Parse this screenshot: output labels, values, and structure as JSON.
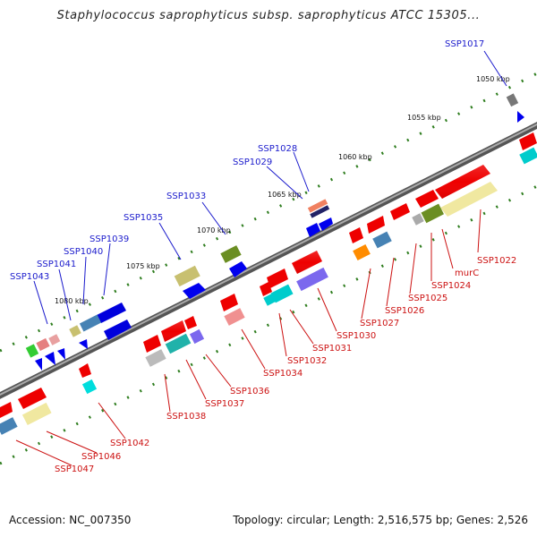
{
  "title": "Staphylococcus saprophyticus subsp. saprophyticus ATCC 15305...",
  "footer": {
    "accession": "Accession: NC_007350",
    "summary": "Topology: circular; Length: 2,516,575 bp; Genes: 2,526"
  },
  "colors": {
    "backbone": "#7a7a7a",
    "tick": "#2e7d1e",
    "forward_label": "#1a1acc",
    "reverse_label": "#cc1111"
  },
  "kbp_labels": [
    "1050 kbp",
    "1055 kbp",
    "1060 kbp",
    "1065 kbp",
    "1070 kbp",
    "1075 kbp",
    "1080 kbp"
  ],
  "forward_labels": [
    "SSP1017",
    "SSP1028",
    "SSP1029",
    "SSP1033",
    "SSP1035",
    "SSP1039",
    "SSP1040",
    "SSP1041",
    "SSP1043"
  ],
  "reverse_labels": [
    "SSP1022",
    "murC",
    "SSP1024",
    "SSP1025",
    "SSP1026",
    "SSP1027",
    "SSP1030",
    "SSP1031",
    "SSP1032",
    "SSP1034",
    "SSP1036",
    "SSP1037",
    "SSP1038",
    "SSP1042",
    "SSP1046",
    "SSP1047"
  ]
}
